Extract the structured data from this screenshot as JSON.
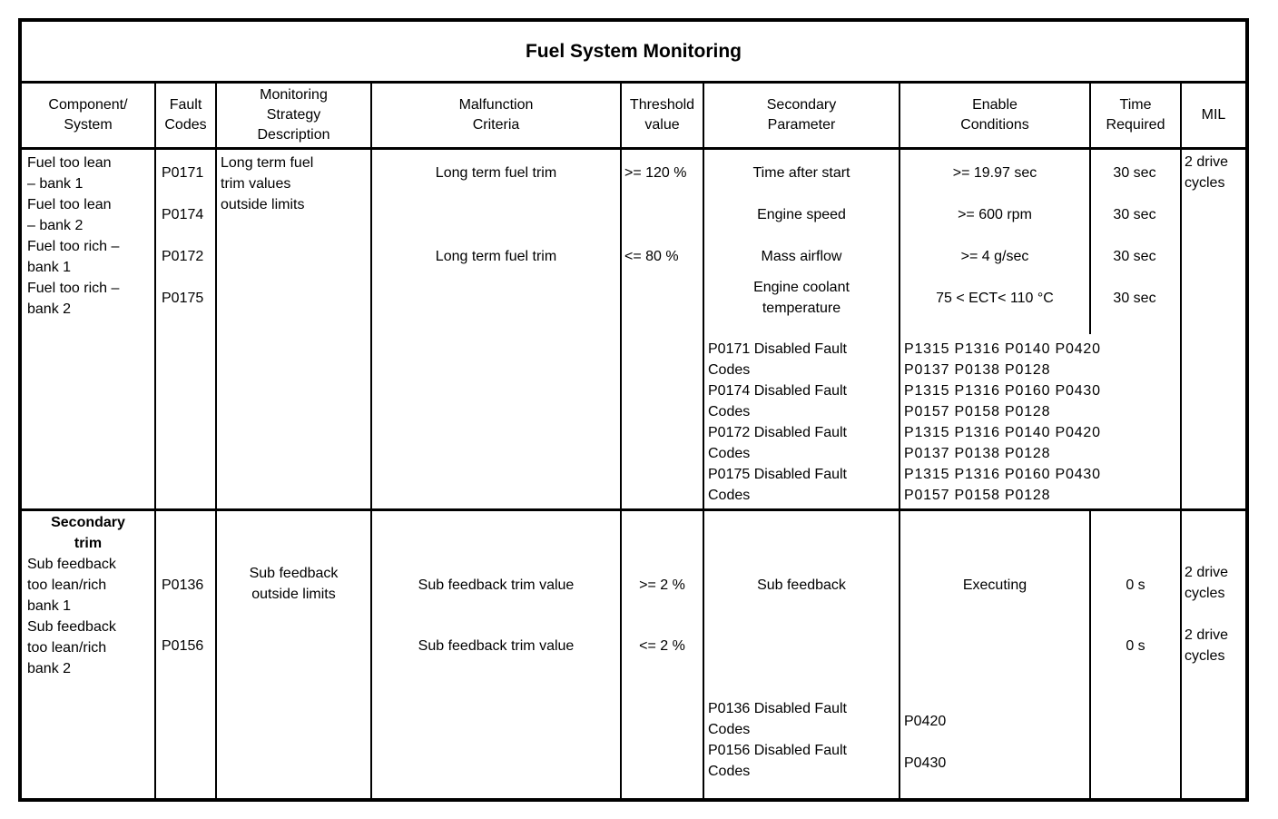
{
  "title": "Fuel System Monitoring",
  "colors": {
    "text": "#000000",
    "border": "#000000",
    "background": "#ffffff"
  },
  "columns": [
    "Component/\nSystem",
    "Fault\nCodes",
    "Monitoring\nStrategy\nDescription",
    "Malfunction\nCriteria",
    "Threshold\nvalue",
    "Secondary\nParameter",
    "Enable\nConditions",
    "Time\nRequired",
    "MIL"
  ],
  "row1": {
    "components": [
      "Fuel too lean\n– bank 1",
      "Fuel too lean\n– bank 2",
      "Fuel too rich –\nbank 1",
      "Fuel too rich –\nbank 2"
    ],
    "fault_codes": [
      "P0171",
      "P0174",
      "P0172",
      "P0175"
    ],
    "monitoring_strategy": "Long term fuel\ntrim values\noutside limits",
    "malfunction_criteria": [
      "Long term fuel trim",
      "Long term fuel trim"
    ],
    "thresholds": [
      ">= 120 %",
      "<= 80 %"
    ],
    "secondary_parameters": [
      "Time after start",
      "Engine speed",
      "Mass airflow",
      "Engine coolant\ntemperature"
    ],
    "disabled_fault_labels": "P0171 Disabled Fault\nCodes\nP0174 Disabled Fault\nCodes\nP0172 Disabled Fault\nCodes\nP0175 Disabled Fault\nCodes",
    "enable_conditions": [
      ">= 19.97 sec",
      ">= 600 rpm",
      ">= 4 g/sec",
      "75 < ECT< 110  °C"
    ],
    "disabled_fault_codes": "P1315 P1316 P0140 P0420\nP0137 P0138 P0128\nP1315 P1316 P0160 P0430\nP0157 P0158 P0128\nP1315 P1316 P0140 P0420\nP0137 P0138 P0128\nP1315 P1316 P0160 P0430\nP0157 P0158 P0128",
    "time_required": [
      "30 sec",
      "30 sec",
      "30 sec",
      "30 sec"
    ],
    "mil": "2 drive\ncycles"
  },
  "row2": {
    "section_title": "Secondary\ntrim",
    "components": [
      "Sub feedback\ntoo lean/rich\nbank 1",
      "Sub feedback\ntoo lean/rich\nbank 2"
    ],
    "fault_codes": [
      "P0136",
      "P0156"
    ],
    "monitoring_strategy": "Sub feedback\noutside limits",
    "malfunction_criteria": [
      "Sub feedback trim value",
      "Sub feedback trim value"
    ],
    "thresholds": [
      ">= 2 %",
      "<= 2 %"
    ],
    "secondary_parameter": "Sub feedback",
    "disabled_fault_labels": "P0136 Disabled Fault\nCodes\nP0156 Disabled Fault\nCodes",
    "enable_condition": "Executing",
    "disabled_fault_codes": [
      "P0420",
      "P0430"
    ],
    "time_required": [
      "0 s",
      "0 s"
    ],
    "mil": [
      "2 drive\ncycles",
      "2 drive\ncycles"
    ]
  }
}
